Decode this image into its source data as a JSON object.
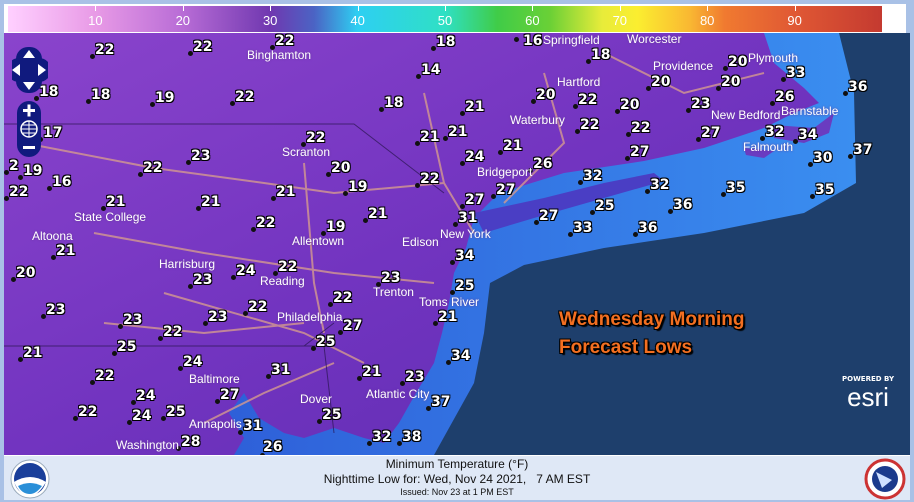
{
  "legend": {
    "ticks": [
      "10",
      "20",
      "30",
      "40",
      "50",
      "60",
      "70",
      "80",
      "90"
    ],
    "range": [
      0,
      100
    ]
  },
  "map": {
    "headline_line1": "Wednesday Morning",
    "headline_line2": "Forecast Lows",
    "temperatures": [
      "22",
      "22",
      "22",
      "18",
      "16",
      "18",
      "20",
      "33",
      "36",
      "14",
      "18",
      "18",
      "19",
      "22",
      "18",
      "21",
      "17",
      "22",
      "20",
      "20",
      "20",
      "22",
      "20",
      "23",
      "26",
      "21",
      "21",
      "22",
      "22",
      "27",
      "32",
      "34",
      "23",
      "22",
      "20",
      "22",
      "2",
      "19",
      "16",
      "22",
      "19",
      "21",
      "21",
      "21",
      "21",
      "22",
      "19",
      "21",
      "27",
      "24",
      "37",
      "30",
      "26",
      "32",
      "27",
      "32",
      "35",
      "35",
      "27",
      "36",
      "25",
      "27",
      "31",
      "33",
      "36",
      "21",
      "20",
      "24",
      "22",
      "23",
      "34",
      "23",
      "25",
      "22",
      "23",
      "22",
      "23",
      "23",
      "22",
      "21",
      "27",
      "25",
      "25",
      "21",
      "24",
      "34",
      "31",
      "22",
      "21",
      "23",
      "24",
      "27",
      "37",
      "22",
      "24",
      "25",
      "25",
      "31",
      "32",
      "38",
      "28",
      "26"
    ],
    "cities": [
      "Binghamton",
      "Scranton",
      "State College",
      "Altoona",
      "Harrisburg",
      "Reading",
      "Allentown",
      "Edison",
      "Trenton",
      "Philadelphia",
      "Toms River",
      "Atlantic City",
      "Baltimore",
      "Annapolis",
      "Washington",
      "Dover",
      "New York",
      "Bridgeport",
      "Waterbury",
      "Hartford",
      "Springfield",
      "Worcester",
      "Providence",
      "Plymouth",
      "New Bedford",
      "Falmouth",
      "Barnstable"
    ],
    "colors": {
      "land": "#7a3cc0",
      "shelf": "#2f6fe0",
      "ocean": "#1e3f6c",
      "headline": "#f36f21"
    }
  },
  "esri": {
    "powered_by": "POWERED BY",
    "logo": "esri"
  },
  "footer": {
    "title": "Minimum Temperature (°F)",
    "subtitle": "Nighttime Low for: Wed, Nov 24 2021,   7 AM EST",
    "issued": "Issued: Nov 23 at 1 PM EST",
    "left_logo": "NOAA",
    "right_logo": "National Weather Service"
  }
}
